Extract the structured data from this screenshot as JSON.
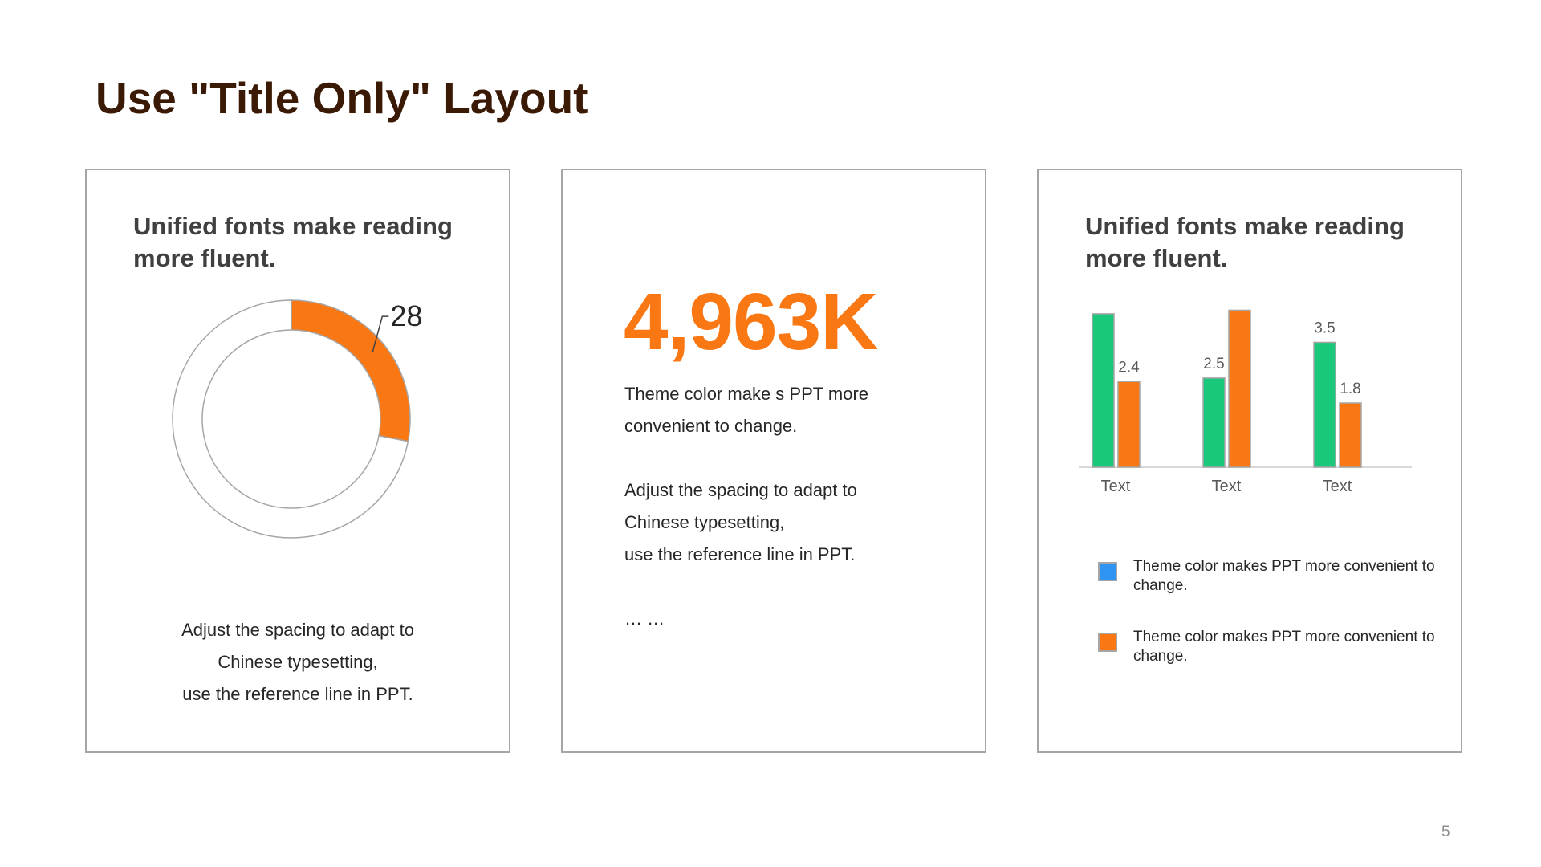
{
  "slide": {
    "title": "Use \"Title Only\" Layout",
    "page_number": "5"
  },
  "card1": {
    "heading": "Unified fonts make reading more fluent.",
    "lines": [
      "Adjust the spacing to adapt to",
      "Chinese  typesetting,",
      "use the reference line  in PPT."
    ]
  },
  "card2": {
    "big_number": "4,963K",
    "paragraph1": [
      "Theme  color make s PPT more",
      "convenient  to change."
    ],
    "paragraph2": [
      "Adjust the spacing to adapt to",
      "Chinese  typesetting,",
      "use the reference line  in PPT."
    ],
    "ellipsis": "… …"
  },
  "card3": {
    "heading": "Unified fonts make reading more fluent.",
    "legend": [
      {
        "text": "Theme  color makes PPT more convenient  to change.",
        "color": "#2e96f2"
      },
      {
        "text": "Theme  color makes PPT more convenient  to change.",
        "color": "#fa7814"
      }
    ]
  },
  "colors": {
    "title": "#3a1a04",
    "accent_orange": "#fa7814",
    "accent_green": "#19c87a",
    "accent_blue": "#2e96f2",
    "border": "#a6a6a6"
  },
  "chart_data": [
    {
      "type": "pie",
      "variant": "donut",
      "slices": [
        {
          "value": 28,
          "color": "#fa7814"
        },
        {
          "value": 72,
          "color": "#ffffff"
        }
      ],
      "data_labels": [
        "28"
      ]
    },
    {
      "type": "bar",
      "categories": [
        "Text",
        "Text",
        "Text"
      ],
      "series": [
        {
          "values": [
            4.3,
            2.5,
            3.5
          ],
          "color": "#19c87a"
        },
        {
          "values": [
            2.4,
            4.4,
            1.8
          ],
          "color": "#fa7814"
        }
      ],
      "ylim": [
        0,
        4.5
      ],
      "grid": false
    }
  ]
}
